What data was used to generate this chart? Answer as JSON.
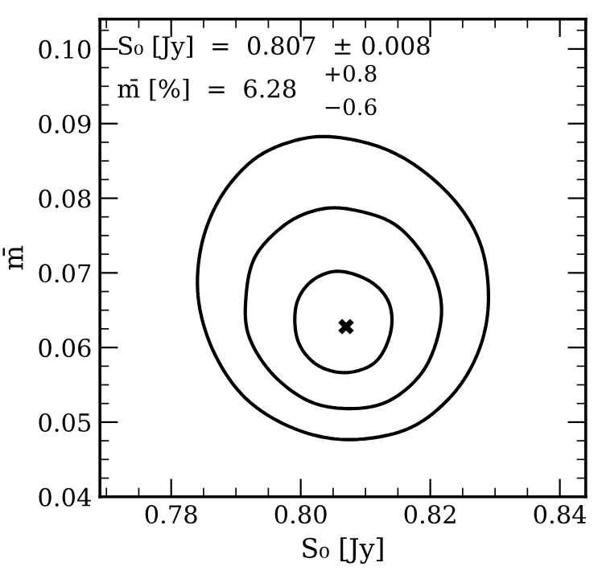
{
  "chart_data": {
    "type": "scatter",
    "xlabel": "S₀ [Jy]",
    "ylabel": "m̄",
    "xlim": [
      0.769,
      0.844
    ],
    "ylim": [
      0.04,
      0.104
    ],
    "xticks": [
      {
        "value": 0.78,
        "label": "0.78"
      },
      {
        "value": 0.8,
        "label": "0.80"
      },
      {
        "value": 0.82,
        "label": "0.82"
      },
      {
        "value": 0.84,
        "label": "0.84"
      }
    ],
    "yticks": [
      {
        "value": 0.04,
        "label": "0.04"
      },
      {
        "value": 0.05,
        "label": "0.05"
      },
      {
        "value": 0.06,
        "label": "0.06"
      },
      {
        "value": 0.07,
        "label": "0.07"
      },
      {
        "value": 0.08,
        "label": "0.08"
      },
      {
        "value": 0.09,
        "label": "0.09"
      },
      {
        "value": 0.1,
        "label": "0.10"
      }
    ],
    "grid": false,
    "legend": false,
    "annotations": [
      "S₀ [Jy]  =  0.807  ± 0.008",
      "m̄ [%]  =  6.28",
      "+0.8",
      "−0.6"
    ],
    "series": [
      {
        "color": "#000000",
        "marker": "cross",
        "x": [
          0.807
        ],
        "values": [
          0.0628
        ]
      }
    ]
  }
}
